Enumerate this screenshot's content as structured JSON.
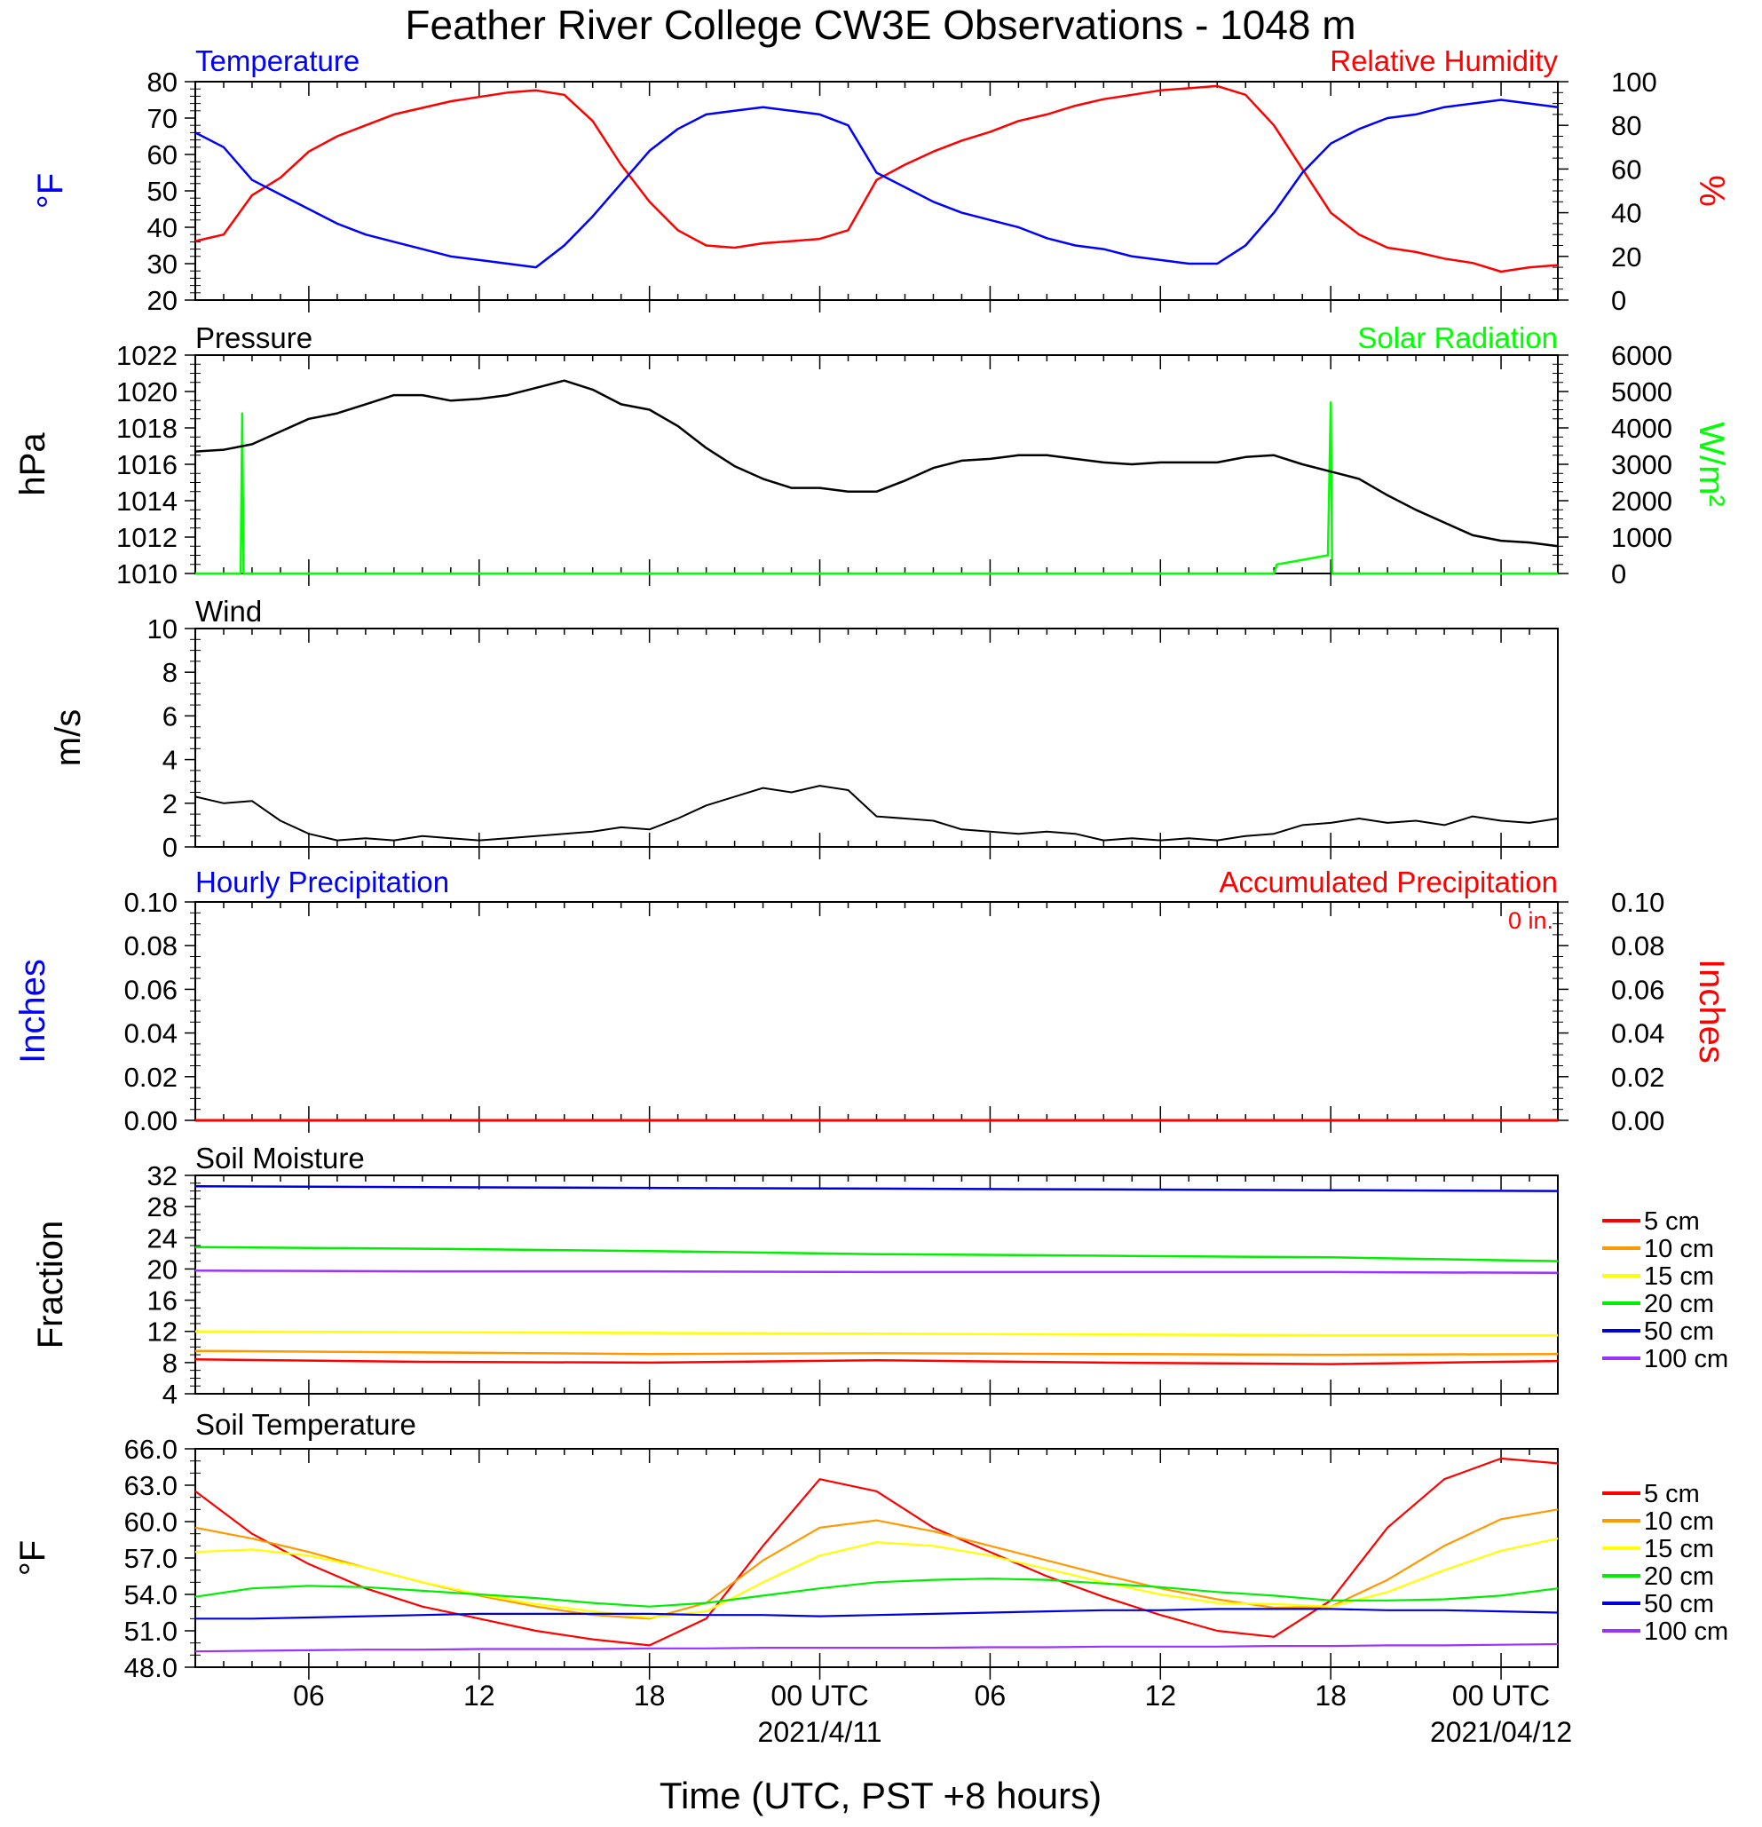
{
  "title": "Feather River College CW3E Observations - 1048 m",
  "x_axis": {
    "label": "Time (UTC, PST +8 hours)",
    "range_hours": [
      -22,
      26
    ],
    "ticks": [
      {
        "h": -18,
        "label": "06"
      },
      {
        "h": -12,
        "label": "12"
      },
      {
        "h": -6,
        "label": "18"
      },
      {
        "h": 0,
        "label": "00 UTC",
        "date": "2021/4/11"
      },
      {
        "h": 6,
        "label": "06"
      },
      {
        "h": 12,
        "label": "12"
      },
      {
        "h": 18,
        "label": "18"
      },
      {
        "h": 24,
        "label": "00 UTC",
        "date": "2021/04/12"
      }
    ]
  },
  "panels": {
    "temp_rh": {
      "left_title": "Temperature",
      "right_title": "Relative Humidity",
      "left_unit": "°F",
      "right_unit": "%",
      "colors": {
        "left": "#0000ff",
        "right": "#ff0000"
      }
    },
    "pressure": {
      "left_title": "Pressure",
      "right_title": "Solar Radiation",
      "left_unit": "hPa",
      "right_unit": "W/m²",
      "colors": {
        "left": "#000000",
        "right": "#00ff00"
      }
    },
    "wind": {
      "title": "Wind",
      "unit": "m/s"
    },
    "precip": {
      "left_title": "Hourly Precipitation",
      "right_title": "Accumulated Precipitation",
      "total_label": "0 in.",
      "left_unit": "Inches",
      "right_unit": "Inches",
      "colors": {
        "left": "#0000ff",
        "right": "#ff0000"
      }
    },
    "soil_moisture": {
      "title": "Soil Moisture",
      "unit": "Fraction"
    },
    "soil_temp": {
      "title": "Soil Temperature",
      "unit": "°F"
    }
  },
  "soil_legend": [
    {
      "label": "5 cm",
      "color": "#ff0000"
    },
    {
      "label": "10 cm",
      "color": "#ff9900"
    },
    {
      "label": "15 cm",
      "color": "#ffff00"
    },
    {
      "label": "20 cm",
      "color": "#00ee00"
    },
    {
      "label": "50 cm",
      "color": "#0000dd"
    },
    {
      "label": "100 cm",
      "color": "#9933ff"
    }
  ],
  "chart_data": [
    {
      "type": "line",
      "panel": "temp_rh",
      "x_unit": "hours relative to 2021-04-11 00 UTC",
      "series": [
        {
          "name": "Temperature",
          "axis": "left",
          "unit": "°F",
          "x": [
            -22,
            -21,
            -20,
            -19,
            -18,
            -17,
            -16,
            -15,
            -14,
            -13,
            -12,
            -11,
            -10,
            -9,
            -8,
            -7,
            -6,
            -5,
            -4,
            -3,
            -2,
            -1,
            0,
            1,
            2,
            3,
            4,
            5,
            6,
            7,
            8,
            9,
            10,
            11,
            12,
            13,
            14,
            15,
            16,
            17,
            18,
            19,
            20,
            21,
            22,
            23,
            24,
            25,
            26
          ],
          "y": [
            66,
            62,
            53,
            49,
            45,
            41,
            38,
            36,
            34,
            32,
            31,
            30,
            29,
            35,
            43,
            52,
            61,
            67,
            71,
            72,
            73,
            72,
            71,
            68,
            55,
            51,
            47,
            44,
            42,
            40,
            37,
            35,
            34,
            32,
            31,
            30,
            30,
            35,
            44,
            55,
            63,
            67,
            70,
            71,
            73,
            74,
            75,
            74,
            73
          ]
        },
        {
          "name": "Relative Humidity",
          "axis": "right",
          "unit": "%",
          "x": [
            -22,
            -21,
            -20,
            -19,
            -18,
            -17,
            -16,
            -15,
            -14,
            -13,
            -12,
            -11,
            -10,
            -9,
            -8,
            -7,
            -6,
            -5,
            -4,
            -3,
            -2,
            -1,
            0,
            1,
            2,
            3,
            4,
            5,
            6,
            7,
            8,
            9,
            10,
            11,
            12,
            13,
            14,
            15,
            16,
            17,
            18,
            19,
            20,
            21,
            22,
            23,
            24,
            25,
            26
          ],
          "y": [
            27,
            30,
            48,
            56,
            68,
            75,
            80,
            85,
            88,
            91,
            93,
            95,
            96,
            94,
            82,
            62,
            45,
            32,
            25,
            24,
            26,
            27,
            28,
            32,
            55,
            62,
            68,
            73,
            77,
            82,
            85,
            89,
            92,
            94,
            96,
            97,
            98,
            94,
            80,
            60,
            40,
            30,
            24,
            22,
            19,
            17,
            13,
            15,
            16
          ]
        }
      ],
      "ylim_left": [
        20,
        80
      ],
      "ylim_right": [
        0,
        100
      ]
    },
    {
      "type": "line",
      "panel": "pressure",
      "series": [
        {
          "name": "Pressure",
          "axis": "left",
          "unit": "hPa",
          "x": [
            -22,
            -21,
            -20,
            -19,
            -18,
            -17,
            -16,
            -15,
            -14,
            -13,
            -12,
            -11,
            -10,
            -9,
            -8,
            -7,
            -6,
            -5,
            -4,
            -3,
            -2,
            -1,
            0,
            1,
            2,
            3,
            4,
            5,
            6,
            7,
            8,
            9,
            10,
            11,
            12,
            13,
            14,
            15,
            16,
            17,
            18,
            19,
            20,
            21,
            22,
            23,
            24,
            25,
            26
          ],
          "y": [
            1016.7,
            1016.8,
            1017.1,
            1017.8,
            1018.5,
            1018.8,
            1019.3,
            1019.8,
            1019.8,
            1019.5,
            1019.6,
            1019.8,
            1020.2,
            1020.6,
            1020.1,
            1019.3,
            1019.0,
            1018.1,
            1016.9,
            1015.9,
            1015.2,
            1014.7,
            1014.7,
            1014.5,
            1014.5,
            1015.1,
            1015.8,
            1016.2,
            1016.3,
            1016.5,
            1016.5,
            1016.3,
            1016.1,
            1016.0,
            1016.1,
            1016.1,
            1016.1,
            1016.4,
            1016.5,
            1016.0,
            1015.6,
            1015.2,
            1014.3,
            1013.5,
            1012.8,
            1012.1,
            1011.8,
            1011.7,
            1011.5
          ]
        },
        {
          "name": "Solar Radiation",
          "axis": "right",
          "unit": "W/m²",
          "x": [
            -22,
            -20.4,
            -20.35,
            -20.3,
            -6.1,
            -6.05,
            -6.0,
            -5.9,
            -4.9,
            -4.8,
            -4.7,
            2.8,
            16.0,
            16.1,
            17.9,
            18.0,
            18.05,
            18.1,
            26
          ],
          "y": [
            0,
            0,
            4400,
            0,
            0,
            0,
            0,
            0,
            0,
            0,
            0,
            0,
            0,
            250,
            500,
            4700,
            0,
            0,
            0
          ]
        }
      ],
      "ylim_left": [
        1010,
        1022
      ],
      "ylim_right": [
        0,
        6000
      ]
    },
    {
      "type": "line",
      "panel": "wind",
      "series": [
        {
          "name": "Wind",
          "unit": "m/s",
          "x": [
            -22,
            -21,
            -20,
            -19,
            -18,
            -17,
            -16,
            -15,
            -14,
            -13,
            -12,
            -11,
            -10,
            -9,
            -8,
            -7,
            -6,
            -5,
            -4,
            -3,
            -2,
            -1,
            0,
            1,
            2,
            3,
            4,
            5,
            6,
            7,
            8,
            9,
            10,
            11,
            12,
            13,
            14,
            15,
            16,
            17,
            18,
            19,
            20,
            21,
            22,
            23,
            24,
            25,
            26
          ],
          "y": [
            2.3,
            2.0,
            2.1,
            1.2,
            0.6,
            0.3,
            0.4,
            0.3,
            0.5,
            0.4,
            0.3,
            0.4,
            0.5,
            0.6,
            0.7,
            0.9,
            0.8,
            1.3,
            1.9,
            2.3,
            2.7,
            2.5,
            2.8,
            2.6,
            1.4,
            1.3,
            1.2,
            0.8,
            0.7,
            0.6,
            0.7,
            0.6,
            0.3,
            0.4,
            0.3,
            0.4,
            0.3,
            0.5,
            0.6,
            1.0,
            1.1,
            1.3,
            1.1,
            1.2,
            1.0,
            1.4,
            1.2,
            1.1,
            1.3
          ]
        }
      ],
      "ylim": [
        0,
        10
      ]
    },
    {
      "type": "line",
      "panel": "precip",
      "series": [
        {
          "name": "Hourly Precipitation",
          "axis": "left",
          "x": [
            -22,
            26
          ],
          "y": [
            0,
            0
          ]
        },
        {
          "name": "Accumulated Precipitation",
          "axis": "right",
          "x": [
            -22,
            26
          ],
          "y": [
            0,
            0
          ]
        }
      ],
      "ylim_left": [
        0,
        0.1
      ],
      "ylim_right": [
        0,
        0.1
      ]
    },
    {
      "type": "line",
      "panel": "soil_moisture",
      "x": [
        -22,
        -14,
        -6,
        2,
        10,
        18,
        26
      ],
      "series": [
        {
          "name": "5 cm",
          "y": [
            8.4,
            8.1,
            8.0,
            8.3,
            8.0,
            7.8,
            8.2
          ]
        },
        {
          "name": "10 cm",
          "y": [
            9.5,
            9.3,
            9.1,
            9.2,
            9.1,
            9.0,
            9.1
          ]
        },
        {
          "name": "15 cm",
          "y": [
            12.0,
            11.9,
            11.8,
            11.7,
            11.6,
            11.5,
            11.5
          ]
        },
        {
          "name": "20 cm",
          "y": [
            22.8,
            22.6,
            22.3,
            21.9,
            21.7,
            21.5,
            21.0
          ]
        },
        {
          "name": "50 cm",
          "y": [
            30.6,
            30.5,
            30.4,
            30.3,
            30.2,
            30.1,
            30.0
          ]
        },
        {
          "name": "100 cm",
          "y": [
            19.8,
            19.7,
            19.7,
            19.6,
            19.6,
            19.6,
            19.5
          ]
        }
      ],
      "ylim": [
        4,
        32
      ]
    },
    {
      "type": "line",
      "panel": "soil_temp",
      "x": [
        -22,
        -20,
        -18,
        -16,
        -14,
        -12,
        -10,
        -8,
        -6,
        -4,
        -2,
        0,
        2,
        4,
        6,
        8,
        10,
        12,
        14,
        16,
        18,
        20,
        22,
        24,
        26
      ],
      "series": [
        {
          "name": "5 cm",
          "y": [
            62.5,
            59.0,
            56.5,
            54.5,
            53.0,
            52.0,
            51.0,
            50.3,
            49.8,
            52.0,
            58.0,
            63.5,
            62.5,
            59.5,
            57.5,
            55.5,
            53.8,
            52.3,
            51.0,
            50.5,
            53.5,
            59.5,
            63.5,
            65.2,
            64.8
          ]
        },
        {
          "name": "10 cm",
          "y": [
            59.5,
            58.6,
            57.5,
            56.2,
            55.0,
            53.9,
            53.0,
            52.3,
            52.0,
            53.3,
            56.8,
            59.5,
            60.1,
            59.2,
            58.0,
            56.8,
            55.6,
            54.5,
            53.6,
            52.9,
            53.0,
            55.2,
            58.0,
            60.2,
            61.0
          ]
        },
        {
          "name": "15 cm",
          "y": [
            57.5,
            57.7,
            57.2,
            56.2,
            55.0,
            54.0,
            53.2,
            52.6,
            52.1,
            52.6,
            55.0,
            57.2,
            58.3,
            58.0,
            57.2,
            56.1,
            55.0,
            54.0,
            53.3,
            53.2,
            53.0,
            54.2,
            56.0,
            57.6,
            58.6
          ]
        },
        {
          "name": "20 cm",
          "y": [
            53.8,
            54.5,
            54.7,
            54.6,
            54.3,
            54.0,
            53.7,
            53.3,
            53.0,
            53.3,
            53.9,
            54.5,
            55.0,
            55.2,
            55.3,
            55.2,
            54.9,
            54.6,
            54.2,
            53.9,
            53.5,
            53.5,
            53.6,
            53.9,
            54.5
          ]
        },
        {
          "name": "50 cm",
          "y": [
            52.0,
            52.0,
            52.1,
            52.2,
            52.3,
            52.4,
            52.4,
            52.4,
            52.4,
            52.3,
            52.3,
            52.2,
            52.3,
            52.4,
            52.5,
            52.6,
            52.7,
            52.7,
            52.8,
            52.8,
            52.8,
            52.7,
            52.7,
            52.6,
            52.5
          ]
        },
        {
          "name": "100 cm",
          "y": [
            49.3,
            49.35,
            49.4,
            49.45,
            49.45,
            49.5,
            49.5,
            49.5,
            49.55,
            49.55,
            49.6,
            49.6,
            49.6,
            49.6,
            49.65,
            49.65,
            49.7,
            49.7,
            49.7,
            49.75,
            49.75,
            49.8,
            49.8,
            49.85,
            49.9
          ]
        }
      ],
      "ylim": [
        48.0,
        66.0
      ]
    }
  ]
}
